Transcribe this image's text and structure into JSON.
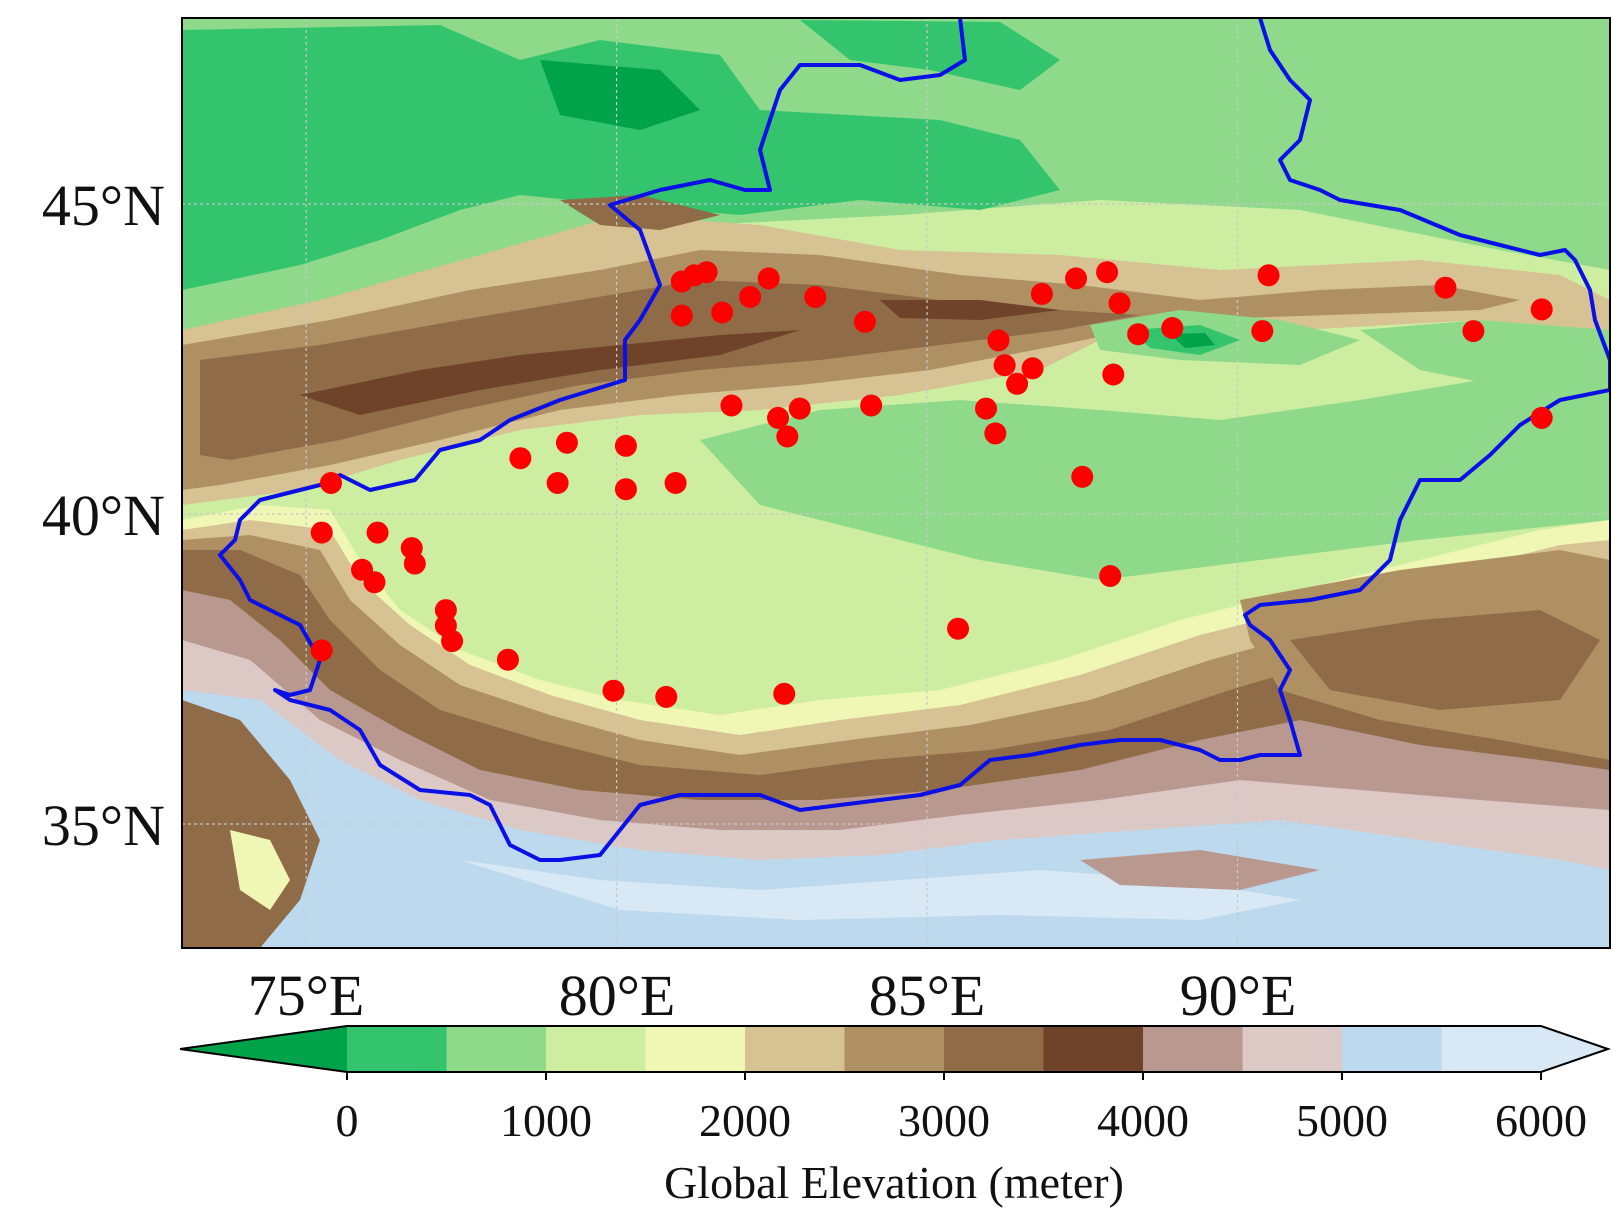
{
  "map": {
    "lat_labels": [
      "45°N",
      "40°N",
      "35°N"
    ],
    "lon_labels": [
      "75°E",
      "80°E",
      "85°E",
      "90°E"
    ],
    "lat_values": [
      45,
      40,
      35
    ],
    "lon_values": [
      75,
      80,
      85,
      90
    ],
    "extent": {
      "lon_min": 73,
      "lon_max": 96,
      "lat_min": 33,
      "lat_max": 48
    },
    "gridlines": true,
    "boundary_color": "#0a10e6",
    "station_color": "#ff0000",
    "stations": [
      {
        "lon": 75.4,
        "lat": 40.5
      },
      {
        "lon": 75.25,
        "lat": 39.7
      },
      {
        "lon": 76.15,
        "lat": 39.7
      },
      {
        "lon": 75.9,
        "lat": 39.1
      },
      {
        "lon": 76.1,
        "lat": 38.9
      },
      {
        "lon": 76.7,
        "lat": 39.45
      },
      {
        "lon": 76.75,
        "lat": 39.2
      },
      {
        "lon": 75.25,
        "lat": 37.8
      },
      {
        "lon": 77.25,
        "lat": 38.45
      },
      {
        "lon": 77.25,
        "lat": 38.2
      },
      {
        "lon": 77.35,
        "lat": 37.95
      },
      {
        "lon": 78.25,
        "lat": 37.65
      },
      {
        "lon": 78.45,
        "lat": 40.9
      },
      {
        "lon": 79.2,
        "lat": 41.15
      },
      {
        "lon": 79.05,
        "lat": 40.5
      },
      {
        "lon": 80.15,
        "lat": 41.1
      },
      {
        "lon": 80.15,
        "lat": 40.4
      },
      {
        "lon": 80.95,
        "lat": 40.5
      },
      {
        "lon": 79.95,
        "lat": 37.15
      },
      {
        "lon": 80.8,
        "lat": 37.05
      },
      {
        "lon": 82.7,
        "lat": 37.1
      },
      {
        "lon": 81.05,
        "lat": 43.2
      },
      {
        "lon": 81.05,
        "lat": 43.75
      },
      {
        "lon": 81.25,
        "lat": 43.85
      },
      {
        "lon": 81.45,
        "lat": 43.9
      },
      {
        "lon": 81.7,
        "lat": 43.25
      },
      {
        "lon": 82.15,
        "lat": 43.5
      },
      {
        "lon": 82.45,
        "lat": 43.8
      },
      {
        "lon": 83.2,
        "lat": 43.5
      },
      {
        "lon": 81.85,
        "lat": 41.75
      },
      {
        "lon": 82.6,
        "lat": 41.55
      },
      {
        "lon": 82.95,
        "lat": 41.7
      },
      {
        "lon": 82.75,
        "lat": 41.25
      },
      {
        "lon": 84.0,
        "lat": 43.1
      },
      {
        "lon": 84.1,
        "lat": 41.75
      },
      {
        "lon": 85.5,
        "lat": 38.15
      },
      {
        "lon": 86.15,
        "lat": 42.8
      },
      {
        "lon": 86.25,
        "lat": 42.4
      },
      {
        "lon": 86.45,
        "lat": 42.1
      },
      {
        "lon": 86.7,
        "lat": 42.35
      },
      {
        "lon": 85.95,
        "lat": 41.7
      },
      {
        "lon": 86.1,
        "lat": 41.3
      },
      {
        "lon": 86.85,
        "lat": 43.55
      },
      {
        "lon": 87.4,
        "lat": 43.8
      },
      {
        "lon": 87.9,
        "lat": 43.9
      },
      {
        "lon": 88.1,
        "lat": 43.4
      },
      {
        "lon": 88.4,
        "lat": 42.9
      },
      {
        "lon": 88.95,
        "lat": 43.0
      },
      {
        "lon": 88.0,
        "lat": 42.25
      },
      {
        "lon": 87.5,
        "lat": 40.6
      },
      {
        "lon": 87.95,
        "lat": 39.0
      },
      {
        "lon": 90.5,
        "lat": 43.85
      },
      {
        "lon": 90.4,
        "lat": 42.95
      },
      {
        "lon": 93.35,
        "lat": 43.65
      },
      {
        "lon": 93.8,
        "lat": 42.95
      },
      {
        "lon": 94.9,
        "lat": 43.3
      },
      {
        "lon": 94.9,
        "lat": 41.55
      }
    ]
  },
  "colorbar": {
    "title": "Global Elevation (meter)",
    "tick_labels": [
      "0",
      "1000",
      "2000",
      "3000",
      "4000",
      "5000",
      "6000"
    ],
    "levels": [
      -500,
      0,
      500,
      1000,
      1500,
      2000,
      2500,
      3000,
      3500,
      4000,
      4500,
      5000,
      5500,
      6000
    ],
    "colors": [
      "#00a24a",
      "#35c46e",
      "#8ed98a",
      "#cdeea0",
      "#f0f7b5",
      "#d6c293",
      "#ae9063",
      "#906b48",
      "#6e4329",
      "#b99890",
      "#dcc9c6",
      "#bdd9ee",
      "#d9e8f5"
    ],
    "extend": "both"
  }
}
